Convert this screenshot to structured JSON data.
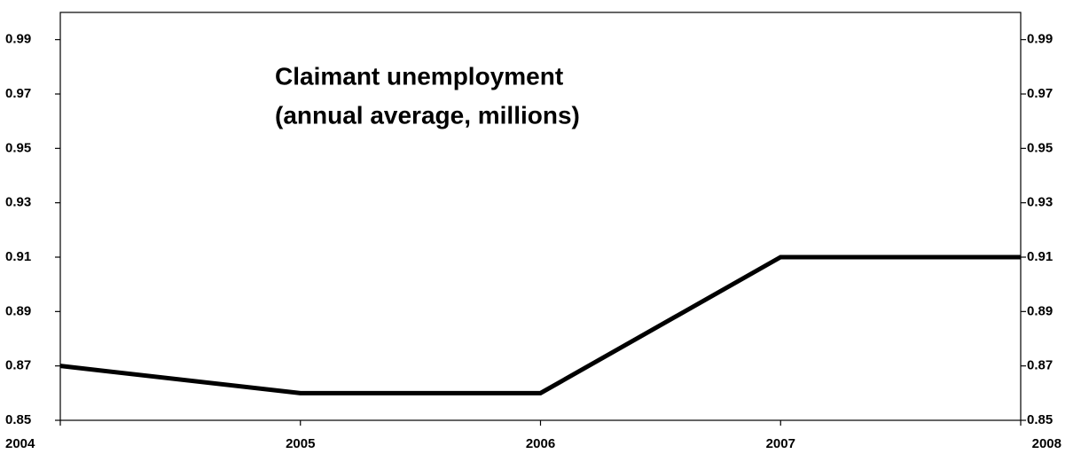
{
  "chart_data": {
    "type": "line",
    "title": [
      "Claimant unemployment",
      "(annual average, millions)"
    ],
    "x": [
      2004,
      2005,
      2006,
      2007,
      2008
    ],
    "series": [
      {
        "color": "#000000",
        "values": [
          0.87,
          0.86,
          0.86,
          0.91,
          0.91
        ]
      }
    ],
    "xlim": [
      2004,
      2008
    ],
    "xticks": [
      2004,
      2005,
      2006,
      2007,
      2008
    ],
    "ylim": [
      0.85,
      1.0
    ],
    "yticks": [
      0.85,
      0.87,
      0.89,
      0.91,
      0.93,
      0.95,
      0.97,
      0.99
    ],
    "grid": false
  }
}
